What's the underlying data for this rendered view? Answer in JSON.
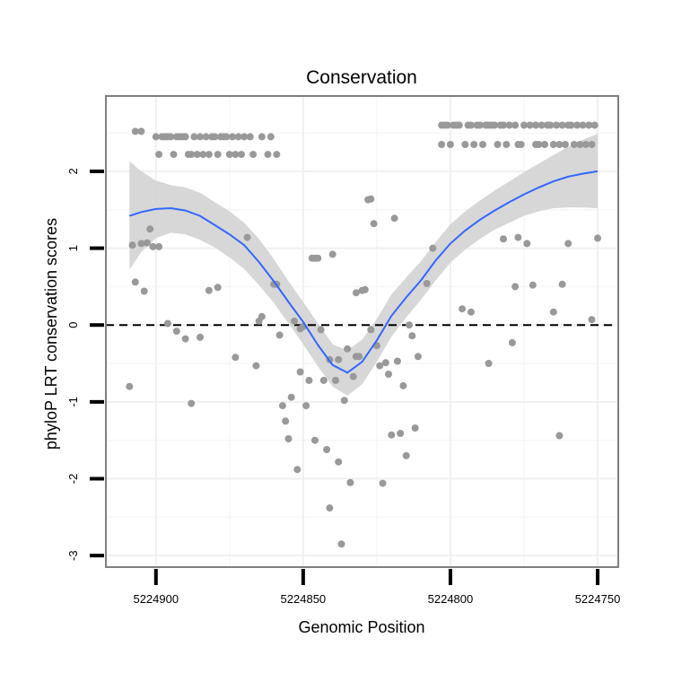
{
  "chart_data": {
    "type": "scatter",
    "title": "Conservation",
    "xlabel": "Genomic Position",
    "ylabel": "phyloP LRT conservation scores",
    "xlim": [
      5224917,
      5224743
    ],
    "ylim": [
      -3.15,
      2.98
    ],
    "x_reversed": true,
    "x_ticks": [
      5224900,
      5224850,
      5224800,
      5224750
    ],
    "x_tick_labels": [
      "5224900",
      "5224850",
      "5224800",
      "5224750"
    ],
    "y_ticks": [
      2,
      1,
      0,
      -1,
      -2,
      -3
    ],
    "y_tick_labels": [
      "2",
      "1",
      "0",
      "-1",
      "-2",
      "-3"
    ],
    "grid": true,
    "reference_line": {
      "y": 0,
      "style": "dashed",
      "color": "#000000"
    },
    "colors": {
      "points": "#999999",
      "smooth_line": "#3366FF",
      "ribbon": "#D3D3D3",
      "panel_border": "#7F7F7F",
      "grid_major": "#F0F0F0",
      "grid_minor": "#F7F7F7"
    },
    "points": [
      [
        5224909,
        -0.8
      ],
      [
        5224908,
        1.04
      ],
      [
        5224907,
        2.52
      ],
      [
        5224907,
        0.56
      ],
      [
        5224905,
        2.52
      ],
      [
        5224905,
        1.06
      ],
      [
        5224904,
        0.44
      ],
      [
        5224903,
        1.07
      ],
      [
        5224902,
        1.25
      ],
      [
        5224901,
        1.02
      ],
      [
        5224900,
        2.45
      ],
      [
        5224899,
        2.22
      ],
      [
        5224899,
        1.02
      ],
      [
        5224898,
        2.45
      ],
      [
        5224897,
        2.45
      ],
      [
        5224896,
        2.45
      ],
      [
        5224896,
        0.02
      ],
      [
        5224895,
        2.45
      ],
      [
        5224894,
        2.22
      ],
      [
        5224893,
        2.45
      ],
      [
        5224893,
        -0.08
      ],
      [
        5224892,
        2.45
      ],
      [
        5224891,
        2.45
      ],
      [
        5224890,
        2.45
      ],
      [
        5224890,
        -0.18
      ],
      [
        5224889,
        2.22
      ],
      [
        5224888,
        2.22
      ],
      [
        5224888,
        -1.02
      ],
      [
        5224887,
        2.45
      ],
      [
        5224886,
        2.22
      ],
      [
        5224885,
        2.45
      ],
      [
        5224885,
        -0.16
      ],
      [
        5224884,
        2.22
      ],
      [
        5224883,
        2.45
      ],
      [
        5224882,
        2.22
      ],
      [
        5224882,
        0.45
      ],
      [
        5224881,
        2.45
      ],
      [
        5224880,
        2.45
      ],
      [
        5224879,
        2.22
      ],
      [
        5224879,
        0.49
      ],
      [
        5224878,
        2.45
      ],
      [
        5224877,
        2.45
      ],
      [
        5224876,
        2.45
      ],
      [
        5224875,
        2.22
      ],
      [
        5224874,
        2.45
      ],
      [
        5224873,
        2.22
      ],
      [
        5224873,
        -0.42
      ],
      [
        5224872,
        2.45
      ],
      [
        5224871,
        2.22
      ],
      [
        5224870,
        2.45
      ],
      [
        5224869,
        1.14
      ],
      [
        5224868,
        2.45
      ],
      [
        5224867,
        2.22
      ],
      [
        5224866,
        -0.53
      ],
      [
        5224865,
        0.05
      ],
      [
        5224864,
        2.45
      ],
      [
        5224864,
        0.11
      ],
      [
        5224862,
        2.22
      ],
      [
        5224861,
        2.45
      ],
      [
        5224860,
        0.53
      ],
      [
        5224859,
        2.22
      ],
      [
        5224859,
        0.53
      ],
      [
        5224858,
        -0.13
      ],
      [
        5224857,
        -1.05
      ],
      [
        5224856,
        -1.25
      ],
      [
        5224855,
        -1.48
      ],
      [
        5224854,
        -0.94
      ],
      [
        5224853,
        0.05
      ],
      [
        5224852,
        -1.88
      ],
      [
        5224851,
        -0.05
      ],
      [
        5224851,
        -0.61
      ],
      [
        5224850,
        -0.02
      ],
      [
        5224849,
        -1.05
      ],
      [
        5224848,
        -0.72
      ],
      [
        5224847,
        0.87
      ],
      [
        5224846,
        -1.5
      ],
      [
        5224846,
        0.87
      ],
      [
        5224845,
        0.87
      ],
      [
        5224844,
        -0.06
      ],
      [
        5224843,
        -0.72
      ],
      [
        5224842,
        -1.62
      ],
      [
        5224841,
        -2.38
      ],
      [
        5224841,
        -0.45
      ],
      [
        5224840,
        0.92
      ],
      [
        5224839,
        -0.72
      ],
      [
        5224838,
        -1.78
      ],
      [
        5224838,
        -0.45
      ],
      [
        5224837,
        -2.85
      ],
      [
        5224836,
        -0.98
      ],
      [
        5224835,
        -0.31
      ],
      [
        5224834,
        -2.05
      ],
      [
        5224833,
        -0.67
      ],
      [
        5224832,
        -0.41
      ],
      [
        5224832,
        0.42
      ],
      [
        5224831,
        -0.41
      ],
      [
        5224830,
        0.45
      ],
      [
        5224829,
        0.46
      ],
      [
        5224828,
        1.63
      ],
      [
        5224827,
        1.64
      ],
      [
        5224827,
        -0.06
      ],
      [
        5224826,
        1.32
      ],
      [
        5224825,
        -0.27
      ],
      [
        5224824,
        -0.53
      ],
      [
        5224823,
        -2.06
      ],
      [
        5224822,
        -0.49
      ],
      [
        5224821,
        -0.64
      ],
      [
        5224820,
        -1.43
      ],
      [
        5224819,
        1.39
      ],
      [
        5224818,
        -0.47
      ],
      [
        5224817,
        -1.41
      ],
      [
        5224816,
        -0.79
      ],
      [
        5224815,
        -1.7
      ],
      [
        5224814,
        0.0
      ],
      [
        5224813,
        -0.14
      ],
      [
        5224812,
        -1.34
      ],
      [
        5224811,
        -0.41
      ],
      [
        5224808,
        0.54
      ],
      [
        5224806,
        1.0
      ],
      [
        5224803,
        2.6
      ],
      [
        5224803,
        2.35
      ],
      [
        5224802,
        2.6
      ],
      [
        5224801,
        2.6
      ],
      [
        5224800,
        2.35
      ],
      [
        5224799,
        2.6
      ],
      [
        5224798,
        2.6
      ],
      [
        5224797,
        2.6
      ],
      [
        5224796,
        0.21
      ],
      [
        5224795,
        2.35
      ],
      [
        5224794,
        2.6
      ],
      [
        5224793,
        2.6
      ],
      [
        5224793,
        0.17
      ],
      [
        5224792,
        2.35
      ],
      [
        5224791,
        2.6
      ],
      [
        5224790,
        2.6
      ],
      [
        5224789,
        2.35
      ],
      [
        5224788,
        2.6
      ],
      [
        5224787,
        -0.5
      ],
      [
        5224787,
        2.6
      ],
      [
        5224786,
        2.6
      ],
      [
        5224785,
        2.6
      ],
      [
        5224784,
        2.35
      ],
      [
        5224783,
        2.6
      ],
      [
        5224782,
        1.12
      ],
      [
        5224782,
        2.6
      ],
      [
        5224781,
        2.35
      ],
      [
        5224780,
        2.6
      ],
      [
        5224779,
        -0.23
      ],
      [
        5224778,
        2.6
      ],
      [
        5224778,
        0.5
      ],
      [
        5224777,
        2.35
      ],
      [
        5224777,
        1.14
      ],
      [
        5224776,
        2.35
      ],
      [
        5224775,
        2.6
      ],
      [
        5224774,
        1.06
      ],
      [
        5224773,
        2.6
      ],
      [
        5224772,
        0.52
      ],
      [
        5224771,
        2.6
      ],
      [
        5224771,
        2.35
      ],
      [
        5224770,
        2.35
      ],
      [
        5224769,
        2.6
      ],
      [
        5224768,
        2.35
      ],
      [
        5224767,
        2.6
      ],
      [
        5224766,
        2.6
      ],
      [
        5224765,
        0.17
      ],
      [
        5224765,
        2.35
      ],
      [
        5224764,
        2.6
      ],
      [
        5224763,
        2.35
      ],
      [
        5224763,
        -1.44
      ],
      [
        5224762,
        2.6
      ],
      [
        5224762,
        0.53
      ],
      [
        5224761,
        2.35
      ],
      [
        5224760,
        2.6
      ],
      [
        5224760,
        1.06
      ],
      [
        5224759,
        2.6
      ],
      [
        5224758,
        2.35
      ],
      [
        5224757,
        2.6
      ],
      [
        5224756,
        2.35
      ],
      [
        5224755,
        2.6
      ],
      [
        5224754,
        2.35
      ],
      [
        5224753,
        2.6
      ],
      [
        5224752,
        2.35
      ],
      [
        5224752,
        0.07
      ],
      [
        5224751,
        2.6
      ],
      [
        5224750,
        1.13
      ]
    ],
    "smooth": {
      "x": [
        5224909,
        5224905,
        5224900,
        5224895,
        5224890,
        5224885,
        5224880,
        5224875,
        5224870,
        5224865,
        5224860,
        5224855,
        5224850,
        5224845,
        5224840,
        5224835,
        5224830,
        5224825,
        5224820,
        5224815,
        5224810,
        5224805,
        5224800,
        5224795,
        5224790,
        5224785,
        5224780,
        5224775,
        5224770,
        5224765,
        5224760,
        5224755,
        5224750
      ],
      "y": [
        1.42,
        1.47,
        1.51,
        1.52,
        1.49,
        1.42,
        1.3,
        1.18,
        1.04,
        0.82,
        0.57,
        0.3,
        0.04,
        -0.26,
        -0.52,
        -0.62,
        -0.48,
        -0.2,
        0.12,
        0.36,
        0.58,
        0.84,
        1.06,
        1.23,
        1.37,
        1.49,
        1.6,
        1.7,
        1.79,
        1.87,
        1.93,
        1.97,
        2.0
      ],
      "lower": [
        0.72,
        0.95,
        1.13,
        1.2,
        1.18,
        1.11,
        1.01,
        0.88,
        0.73,
        0.52,
        0.29,
        0.02,
        -0.25,
        -0.54,
        -0.8,
        -0.92,
        -0.77,
        -0.48,
        -0.15,
        0.1,
        0.33,
        0.58,
        0.81,
        0.98,
        1.12,
        1.24,
        1.33,
        1.42,
        1.48,
        1.52,
        1.53,
        1.53,
        1.52
      ],
      "upper": [
        2.13,
        2.0,
        1.88,
        1.82,
        1.79,
        1.72,
        1.6,
        1.48,
        1.33,
        1.12,
        0.86,
        0.57,
        0.3,
        0.02,
        -0.25,
        -0.33,
        -0.19,
        0.08,
        0.4,
        0.62,
        0.83,
        1.08,
        1.31,
        1.48,
        1.62,
        1.75,
        1.87,
        1.99,
        2.1,
        2.21,
        2.32,
        2.41,
        2.49
      ]
    }
  }
}
